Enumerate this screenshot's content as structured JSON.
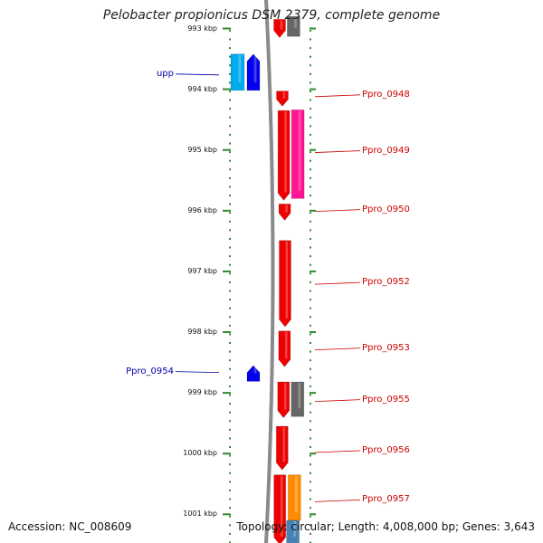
{
  "title": "Pelobacter propionicus DSM 2379, complete genome",
  "footer": {
    "accession": "Accession: NC_008609",
    "topology": "Topology: circular; Length: 4,008,000 bp; Genes: 3,643"
  },
  "chart_data": {
    "type": "genome-map",
    "axis_unit": "kbp",
    "ticks": [
      {
        "kbp": 993,
        "label": "993 kbp"
      },
      {
        "kbp": 994,
        "label": "994 kbp"
      },
      {
        "kbp": 995,
        "label": "995 kbp"
      },
      {
        "kbp": 996,
        "label": "996 kbp"
      },
      {
        "kbp": 997,
        "label": "997 kbp"
      },
      {
        "kbp": 998,
        "label": "998 kbp"
      },
      {
        "kbp": 999,
        "label": "999 kbp"
      },
      {
        "kbp": 1000,
        "label": "1000 kbp"
      },
      {
        "kbp": 1001,
        "label": "1001 kbp"
      }
    ],
    "labels": [
      {
        "text": "Ppro_0948",
        "side": "right",
        "kbp": 994.1
      },
      {
        "text": "Ppro_0949",
        "side": "right",
        "kbp": 995.02
      },
      {
        "text": "Ppro_0950",
        "side": "right",
        "kbp": 995.99
      },
      {
        "text": "Ppro_0952",
        "side": "right",
        "kbp": 997.19
      },
      {
        "text": "Ppro_0953",
        "side": "right",
        "kbp": 998.27
      },
      {
        "text": "Ppro_0955",
        "side": "right",
        "kbp": 999.12
      },
      {
        "text": "Ppro_0956",
        "side": "right",
        "kbp": 999.96
      },
      {
        "text": "Ppro_0957",
        "side": "right",
        "kbp": 1000.77
      },
      {
        "text": "upp",
        "side": "left",
        "kbp": 993.75
      },
      {
        "text": "Ppro_0954",
        "side": "left",
        "kbp": 998.65
      }
    ],
    "features": [
      {
        "track": "red",
        "start": 992.85,
        "end": 993.15,
        "strand": "-",
        "color": "#ee0000"
      },
      {
        "track": "red",
        "start": 994.03,
        "end": 994.28,
        "strand": "-",
        "color": "#ee0000"
      },
      {
        "track": "red",
        "start": 994.35,
        "end": 995.83,
        "strand": "-",
        "color": "#ee0000"
      },
      {
        "track": "red",
        "start": 995.89,
        "end": 996.16,
        "strand": "-",
        "color": "#ee0000"
      },
      {
        "track": "red",
        "start": 996.49,
        "end": 997.91,
        "strand": "-",
        "color": "#ee0000"
      },
      {
        "track": "red",
        "start": 997.98,
        "end": 998.57,
        "strand": "-",
        "color": "#ee0000"
      },
      {
        "track": "red",
        "start": 998.82,
        "end": 999.41,
        "strand": "-",
        "color": "#ee0000"
      },
      {
        "track": "red",
        "start": 999.55,
        "end": 1000.27,
        "strand": "-",
        "color": "#ee0000"
      },
      {
        "track": "red",
        "start": 1000.35,
        "end": 1001.5,
        "strand": "-",
        "color": "#ee0000"
      },
      {
        "track": "outer",
        "start": 992.8,
        "end": 993.13,
        "strand": "none",
        "color": "#666666"
      },
      {
        "track": "outer",
        "start": 994.34,
        "end": 995.8,
        "strand": "none",
        "color": "#ff1493"
      },
      {
        "track": "outer",
        "start": 998.82,
        "end": 999.39,
        "strand": "none",
        "color": "#666666"
      },
      {
        "track": "outer",
        "start": 1000.35,
        "end": 1001.1,
        "strand": "none",
        "color": "#ff8c00"
      },
      {
        "track": "outer",
        "start": 1001.1,
        "end": 1001.5,
        "strand": "none",
        "color": "#4682b4"
      },
      {
        "track": "blue",
        "start": 993.42,
        "end": 994.02,
        "strand": "+",
        "color": "#0000ee"
      },
      {
        "track": "blue",
        "start": 998.55,
        "end": 998.81,
        "strand": "+",
        "color": "#0000ee"
      },
      {
        "track": "cyan",
        "start": 993.42,
        "end": 994.02,
        "strand": "none",
        "color": "#00aaee"
      }
    ]
  }
}
